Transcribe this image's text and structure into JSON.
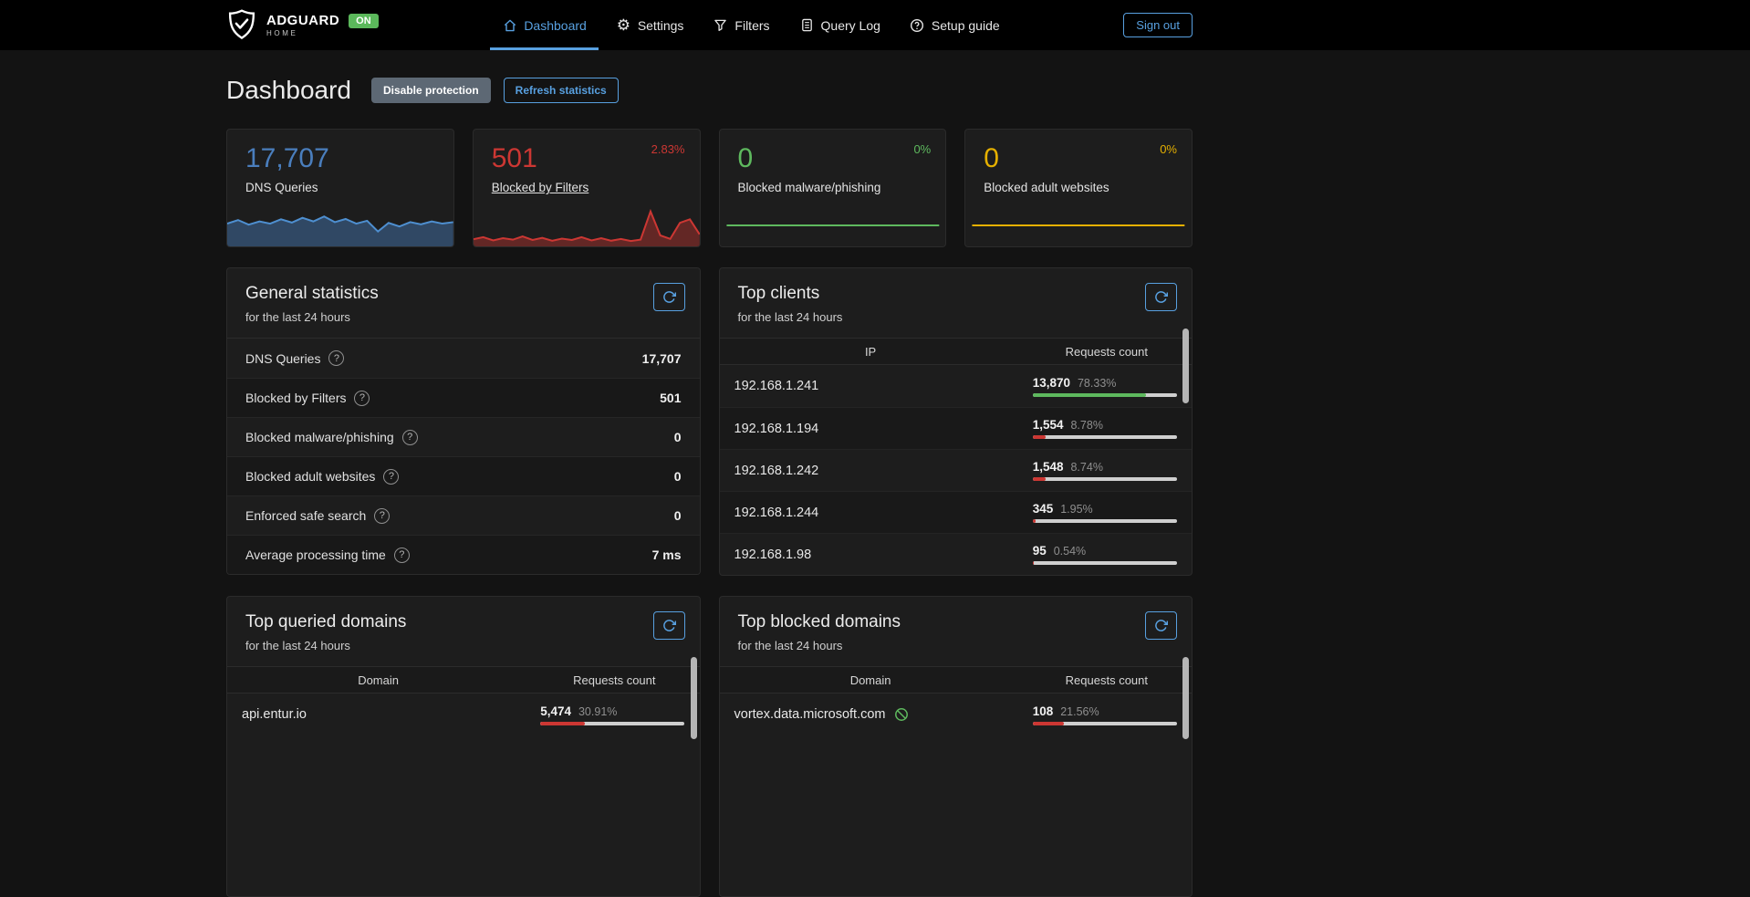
{
  "colors": {
    "accent": "#58a0e0",
    "green": "#5eb95e",
    "red": "#cc3733",
    "yellow": "#e5b000",
    "blue": "#4a7ebd",
    "badge_green": "#5bb85b",
    "bar_track": "#cfcfcf"
  },
  "icons": {
    "logo": "shield-check-icon",
    "nav": [
      "dashboard-home-icon",
      "gear-icon",
      "funnel-icon",
      "document-icon",
      "help-circle-icon"
    ],
    "panel_refresh": "refresh-icon",
    "row_help": "question-circle-icon",
    "blocked_domain": "circle-slash-icon"
  },
  "navbar": {
    "brand": "ADGUARD",
    "brand_sub": "HOME",
    "status_badge": "ON",
    "links": [
      {
        "label": "Dashboard",
        "active": true
      },
      {
        "label": "Settings",
        "active": false
      },
      {
        "label": "Filters",
        "active": false
      },
      {
        "label": "Query Log",
        "active": false
      },
      {
        "label": "Setup guide",
        "active": false
      }
    ],
    "signout_label": "Sign out"
  },
  "page": {
    "title": "Dashboard",
    "disable_protection_label": "Disable protection",
    "refresh_statistics_label": "Refresh statistics"
  },
  "stat_cards": [
    {
      "value": "17,707",
      "label": "DNS Queries",
      "percent": "",
      "value_color": "#4a7ebd"
    },
    {
      "value": "501",
      "label": "Blocked by Filters",
      "percent": "2.83%",
      "value_color": "#cc3733",
      "percent_color": "#cc3733"
    },
    {
      "value": "0",
      "label": "Blocked malware/phishing",
      "percent": "0%",
      "value_color": "#5eb95e",
      "percent_color": "#5eb95e"
    },
    {
      "value": "0",
      "label": "Blocked adult websites",
      "percent": "0%",
      "value_color": "#e5b000",
      "percent_color": "#e5b000"
    }
  ],
  "general_stats": {
    "title": "General statistics",
    "subtitle": "for the last 24 hours",
    "rows": [
      {
        "label": "DNS Queries",
        "value": "17,707"
      },
      {
        "label": "Blocked by Filters",
        "value": "501"
      },
      {
        "label": "Blocked malware/phishing",
        "value": "0"
      },
      {
        "label": "Blocked adult websites",
        "value": "0"
      },
      {
        "label": "Enforced safe search",
        "value": "0"
      },
      {
        "label": "Average processing time",
        "value": "7 ms"
      }
    ]
  },
  "top_clients": {
    "title": "Top clients",
    "subtitle": "for the last 24 hours",
    "columns": [
      "IP",
      "Requests count"
    ],
    "rows": [
      {
        "ip": "192.168.1.241",
        "count": "13,870",
        "percent": "78.33%",
        "pct": 78.33,
        "bar_color": "#5eb95e"
      },
      {
        "ip": "192.168.1.194",
        "count": "1,554",
        "percent": "8.78%",
        "pct": 8.78,
        "bar_color": "#cc3733"
      },
      {
        "ip": "192.168.1.242",
        "count": "1,548",
        "percent": "8.74%",
        "pct": 8.74,
        "bar_color": "#cc3733"
      },
      {
        "ip": "192.168.1.244",
        "count": "345",
        "percent": "1.95%",
        "pct": 1.95,
        "bar_color": "#cc3733"
      },
      {
        "ip": "192.168.1.98",
        "count": "95",
        "percent": "0.54%",
        "pct": 0.54,
        "bar_color": "#cc3733"
      }
    ]
  },
  "top_queried": {
    "title": "Top queried domains",
    "subtitle": "for the last 24 hours",
    "columns": [
      "Domain",
      "Requests count"
    ],
    "rows": [
      {
        "domain": "api.entur.io",
        "count": "5,474",
        "percent": "30.91%",
        "pct": 30.91,
        "bar_color": "#cc3733"
      }
    ]
  },
  "top_blocked": {
    "title": "Top blocked domains",
    "subtitle": "for the last 24 hours",
    "columns": [
      "Domain",
      "Requests count"
    ],
    "rows": [
      {
        "domain": "vortex.data.microsoft.com",
        "count": "108",
        "percent": "21.56%",
        "pct": 21.56,
        "bar_color": "#cc3733"
      }
    ]
  },
  "chart_data": {
    "type": "area",
    "series": [
      {
        "name": "DNS Queries",
        "line_color": "#4e8fd0",
        "fill_color": "rgba(74,126,189,0.45)",
        "values": [
          58,
          68,
          55,
          64,
          58,
          70,
          61,
          74,
          64,
          78,
          62,
          71,
          58,
          66,
          36,
          60,
          50,
          62,
          56,
          64,
          58,
          62
        ]
      },
      {
        "name": "Blocked by Filters",
        "line_color": "#cc3733",
        "fill_color": "rgba(204,55,51,0.4)",
        "values": [
          14,
          20,
          11,
          17,
          13,
          22,
          12,
          18,
          10,
          16,
          12,
          20,
          11,
          17,
          10,
          15,
          9,
          13,
          92,
          25,
          15,
          60,
          70,
          28
        ]
      },
      {
        "name": "Blocked malware/phishing",
        "line_color": "#5eb95e",
        "fill_color": "none",
        "values": [
          0,
          0,
          0,
          0,
          0,
          0,
          0,
          0,
          0,
          0,
          0,
          0
        ]
      },
      {
        "name": "Blocked adult websites",
        "line_color": "#e5b000",
        "fill_color": "none",
        "values": [
          0,
          0,
          0,
          0,
          0,
          0,
          0,
          0,
          0,
          0,
          0,
          0
        ]
      }
    ]
  }
}
